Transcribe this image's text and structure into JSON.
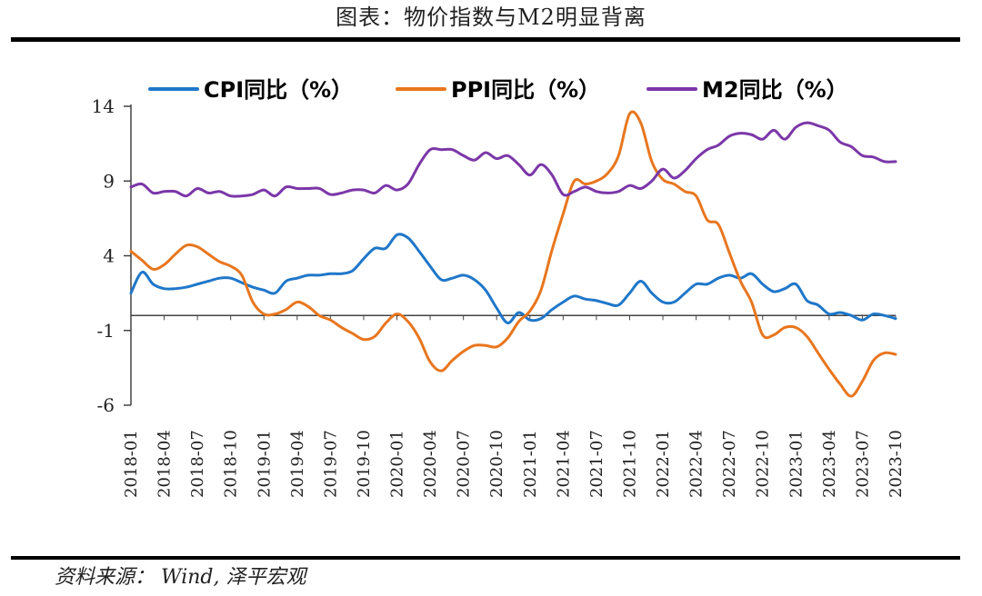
{
  "figure": {
    "title": "图表：物价指数与M2明显背离",
    "source": "资料来源： Wind, 泽平宏观"
  },
  "chart_data": {
    "type": "line",
    "title": "图表：物价指数与M2明显背离",
    "xlabel": "",
    "ylabel": "",
    "ylim": [
      -6,
      14
    ],
    "yticks": [
      14,
      9,
      4,
      -1,
      -6
    ],
    "xticks": [
      "2018-01",
      "2018-04",
      "2018-07",
      "2018-10",
      "2019-01",
      "2019-04",
      "2019-07",
      "2019-10",
      "2020-01",
      "2020-04",
      "2020-07",
      "2020-10",
      "2021-01",
      "2021-04",
      "2021-07",
      "2021-10",
      "2022-01",
      "2022-04",
      "2022-07",
      "2022-10",
      "2023-01",
      "2023-04",
      "2023-07",
      "2023-10"
    ],
    "series": [
      {
        "name": "CPI同比（%）",
        "color": "#1f77c9",
        "values": [
          1.5,
          2.9,
          2.1,
          1.8,
          1.8,
          1.9,
          2.1,
          2.3,
          2.5,
          2.5,
          2.2,
          1.9,
          1.7,
          1.5,
          2.3,
          2.5,
          2.7,
          2.7,
          2.8,
          2.8,
          3.0,
          3.8,
          4.5,
          4.5,
          5.4,
          5.2,
          4.3,
          3.3,
          2.4,
          2.5,
          2.7,
          2.4,
          1.7,
          0.5,
          -0.5,
          0.2,
          -0.3,
          -0.2,
          0.4,
          0.9,
          1.3,
          1.1,
          1.0,
          0.8,
          0.7,
          1.5,
          2.3,
          1.5,
          0.9,
          0.9,
          1.5,
          2.1,
          2.1,
          2.5,
          2.7,
          2.5,
          2.8,
          2.1,
          1.6,
          1.8,
          2.1,
          1.0,
          0.7,
          0.1,
          0.2,
          0.0,
          -0.3,
          0.1,
          0.0,
          -0.2
        ],
        "labels": []
      },
      {
        "name": "PPI同比（%）",
        "color": "#e8761e",
        "values": [
          4.3,
          3.7,
          3.1,
          3.4,
          4.1,
          4.7,
          4.6,
          4.1,
          3.6,
          3.3,
          2.7,
          0.9,
          0.1,
          0.1,
          0.4,
          0.9,
          0.6,
          0.0,
          -0.3,
          -0.8,
          -1.2,
          -1.6,
          -1.4,
          -0.5,
          0.1,
          -0.4,
          -1.5,
          -3.1,
          -3.7,
          -3.0,
          -2.4,
          -2.0,
          -2.0,
          -2.1,
          -1.5,
          -0.4,
          0.3,
          1.7,
          4.4,
          6.8,
          9.0,
          8.8,
          9.0,
          9.5,
          10.7,
          13.5,
          12.9,
          10.3,
          9.1,
          8.8,
          8.3,
          8.0,
          6.4,
          6.1,
          4.2,
          2.3,
          0.9,
          -1.3,
          -1.3,
          -0.8,
          -0.8,
          -1.4,
          -2.5,
          -3.6,
          -4.6,
          -5.4,
          -4.4,
          -3.0,
          -2.5,
          -2.6
        ],
        "labels": []
      },
      {
        "name": "M2同比（%）",
        "color": "#7b37a8",
        "values": [
          8.6,
          8.8,
          8.2,
          8.3,
          8.3,
          8.0,
          8.5,
          8.2,
          8.3,
          8.0,
          8.0,
          8.1,
          8.4,
          8.0,
          8.6,
          8.5,
          8.5,
          8.5,
          8.1,
          8.2,
          8.4,
          8.4,
          8.2,
          8.7,
          8.4,
          8.8,
          10.1,
          11.1,
          11.1,
          11.1,
          10.7,
          10.4,
          10.9,
          10.5,
          10.7,
          10.1,
          9.4,
          10.1,
          9.4,
          8.1,
          8.3,
          8.6,
          8.3,
          8.2,
          8.3,
          8.7,
          8.5,
          9.0,
          9.8,
          9.2,
          9.7,
          10.5,
          11.1,
          11.4,
          12.0,
          12.2,
          12.1,
          11.8,
          12.4,
          11.8,
          12.6,
          12.9,
          12.7,
          12.4,
          11.6,
          11.3,
          10.7,
          10.6,
          10.3,
          10.3
        ],
        "labels": []
      }
    ],
    "legend": "top"
  }
}
